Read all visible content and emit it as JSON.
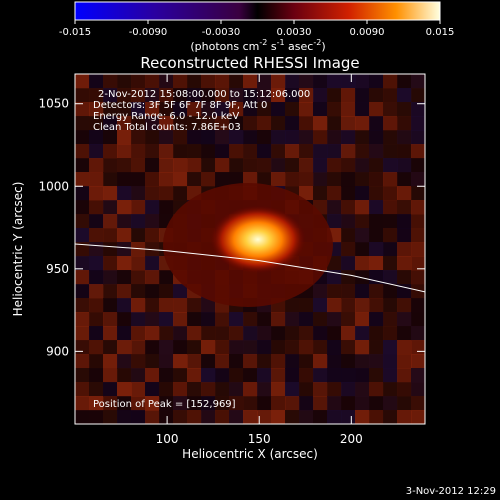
{
  "colorbar": {
    "ticks": [
      -0.015,
      -0.009,
      -0.003,
      0.003,
      0.009,
      0.015
    ],
    "tick_labels": [
      "-0.015",
      "-0.0090",
      "-0.0030",
      "0.0030",
      "0.0090",
      "0.015"
    ],
    "units_label": "(photons cm",
    "units_sup1": "-2",
    "units_mid": " s",
    "units_sup2": "-1",
    "units_mid2": " asec",
    "units_sup3": "-2",
    "units_end": ")",
    "range": [
      -0.015,
      0.015
    ]
  },
  "chart_data": {
    "type": "heatmap",
    "title": "Reconstructed RHESSI Image",
    "xlabel": "Heliocentric X (arcsec)",
    "ylabel": "Heliocentric Y (arcsec)",
    "xlim": [
      50,
      240
    ],
    "ylim": [
      856,
      1068
    ],
    "x_ticks": [
      100,
      150,
      200
    ],
    "y_ticks": [
      900,
      950,
      1000,
      1050
    ],
    "annotations": [
      "2-Nov-2012 15:08:00.000 to 15:12:06.000",
      "Detectors: 3F 5F 6F 7F 8F 9F, Att 0",
      "Energy Range: 6.0 - 12.0 keV",
      "Clean     Total counts: 7.86E+03"
    ],
    "peak_label": "Position of Peak = [152,969]",
    "peak": {
      "x": 152,
      "y": 969
    },
    "limb_curve": [
      {
        "x": 50,
        "y": 965
      },
      {
        "x": 100,
        "y": 961
      },
      {
        "x": 150,
        "y": 955
      },
      {
        "x": 200,
        "y": 946
      },
      {
        "x": 240,
        "y": 936
      }
    ]
  },
  "footer": {
    "date": "3-Nov-2012 12:29"
  }
}
